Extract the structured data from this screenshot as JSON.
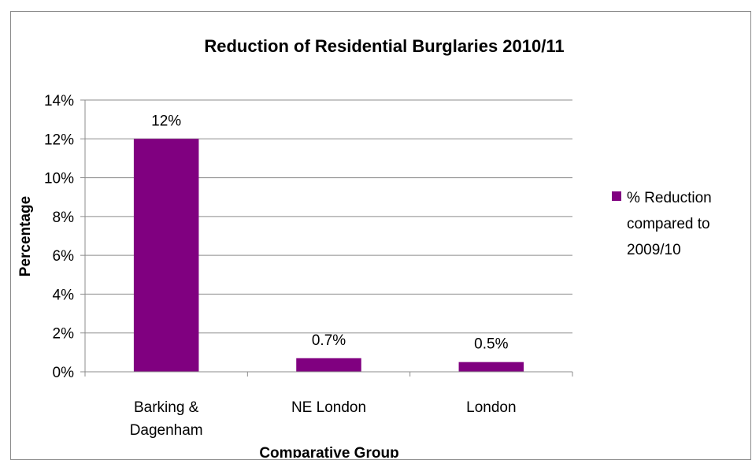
{
  "chart_data": {
    "type": "bar",
    "title": "Reduction of Residential Burglaries 2010/11",
    "xlabel": "Comparative Group",
    "ylabel": "Percentage",
    "categories": [
      "Barking & Dagenham",
      "NE London",
      "London"
    ],
    "category_lines": [
      [
        "Barking &",
        "Dagenham"
      ],
      [
        "NE London"
      ],
      [
        "London"
      ]
    ],
    "series": [
      {
        "name": "% Reduction compared to 2009/10",
        "values": [
          12,
          0.7,
          0.5
        ],
        "data_labels": [
          "12%",
          "0.7%",
          "0.5%"
        ],
        "color": "#800080"
      }
    ],
    "legend_lines": [
      "% Reduction",
      "compared to",
      "2009/10"
    ],
    "y_ticks": [
      "0%",
      "2%",
      "4%",
      "6%",
      "8%",
      "10%",
      "12%",
      "14%"
    ],
    "ylim": [
      0,
      14
    ],
    "grid": true,
    "legend_position": "right"
  }
}
